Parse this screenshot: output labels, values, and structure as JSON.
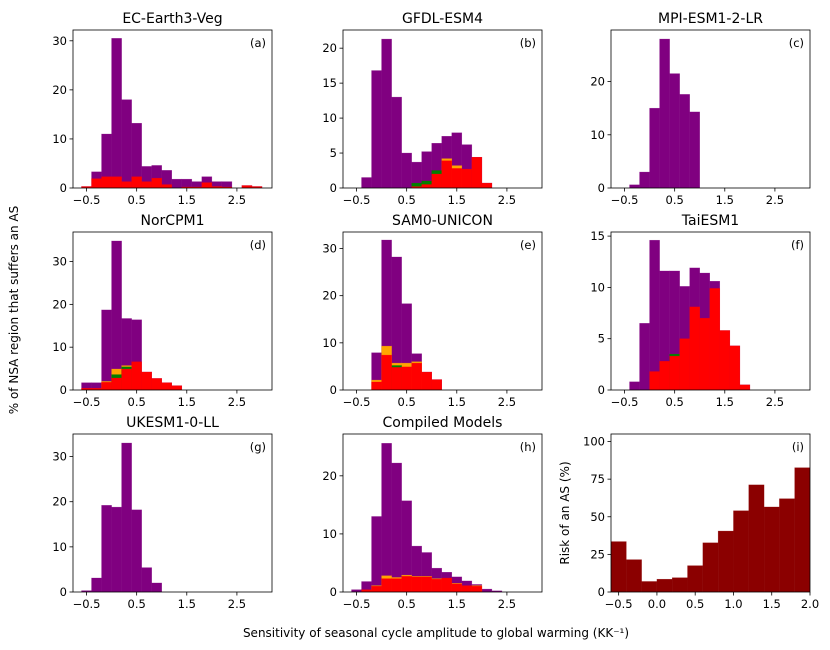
{
  "ylabel": "% of NSA region that suffers an AS",
  "xlabel": "Sensitivity of seasonal cycle amplitude to global warming (KK⁻¹)",
  "colors": {
    "total": "#800080",
    "orange": "#ffa500",
    "green": "#008000",
    "red": "#ff0000",
    "risk": "#8b0000"
  },
  "chart_data": [
    {
      "type": "bar",
      "title": "EC-Earth3-Veg",
      "label": "(a)",
      "bin_start": -0.6,
      "bin_width": 0.2,
      "xlim": [
        -0.77,
        3.2
      ],
      "ylim": [
        0,
        32.2
      ],
      "xticks": [
        -0.5,
        0.5,
        1.5,
        2.5
      ],
      "yticks": [
        0,
        10,
        20,
        30
      ],
      "series": [
        {
          "color": "total",
          "values": [
            0.3,
            3.3,
            11,
            30.5,
            18,
            13.2,
            4.4,
            4.6,
            3.6,
            1.8,
            1.8,
            1.3,
            2.3,
            1.3,
            1.3,
            0,
            0.5,
            0.3
          ]
        },
        {
          "color": "red",
          "values": [
            0.3,
            1.9,
            2.3,
            2.3,
            1.3,
            2.3,
            1.3,
            2.0,
            0.7,
            0,
            0.2,
            0.2,
            1.1,
            0.3,
            0.2,
            0,
            0.5,
            0.3
          ]
        }
      ]
    },
    {
      "type": "bar",
      "title": "GFDL-ESM4",
      "label": "(b)",
      "bin_start": -0.6,
      "bin_width": 0.2,
      "xlim": [
        -0.77,
        3.2
      ],
      "ylim": [
        0,
        22.6
      ],
      "xticks": [
        -0.5,
        0.5,
        1.5,
        2.5
      ],
      "yticks": [
        0,
        5,
        10,
        15,
        20
      ],
      "series": [
        {
          "color": "total",
          "values": [
            0,
            1.5,
            16.8,
            21.3,
            13,
            5,
            3.7,
            5.2,
            6.4,
            7.4,
            7.9,
            6.2,
            4.4,
            0.7,
            0,
            0,
            0,
            0
          ]
        },
        {
          "color": "orange",
          "values": [
            0,
            0,
            0,
            0,
            0,
            0,
            0,
            0,
            0,
            4.2,
            3.2,
            0,
            0,
            0,
            0,
            0,
            0,
            0
          ]
        },
        {
          "color": "green",
          "values": [
            0,
            0,
            0,
            0,
            0,
            0,
            0.7,
            1.0,
            2.5,
            0,
            0,
            0,
            0,
            0,
            0,
            0,
            0,
            0
          ]
        },
        {
          "color": "red",
          "values": [
            0,
            0,
            0,
            0,
            0,
            0,
            0.2,
            0.5,
            2.0,
            3.9,
            2.8,
            2.7,
            4.4,
            0.7,
            0,
            0,
            0,
            0
          ]
        }
      ]
    },
    {
      "type": "bar",
      "title": "MPI-ESM1-2-LR",
      "label": "(c)",
      "bin_start": -0.6,
      "bin_width": 0.2,
      "xlim": [
        -0.77,
        3.2
      ],
      "ylim": [
        0,
        29.7
      ],
      "xticks": [
        -0.5,
        0.5,
        1.5,
        2.5
      ],
      "yticks": [
        0,
        10,
        20
      ],
      "series": [
        {
          "color": "total",
          "values": [
            0,
            0.6,
            3,
            15,
            28,
            21.5,
            17.6,
            14.3,
            0,
            0,
            0,
            0,
            0,
            0,
            0,
            0,
            0,
            0
          ]
        }
      ]
    },
    {
      "type": "bar",
      "title": "NorCPM1",
      "label": "(d)",
      "bin_start": -0.6,
      "bin_width": 0.2,
      "xlim": [
        -0.77,
        3.2
      ],
      "ylim": [
        0,
        36.9
      ],
      "xticks": [
        -0.5,
        0.5,
        1.5,
        2.5
      ],
      "yticks": [
        0,
        10,
        20,
        30
      ],
      "series": [
        {
          "color": "total",
          "values": [
            1.7,
            1.7,
            18.7,
            34.8,
            16.7,
            16.4,
            4.2,
            2.7,
            1.7,
            1.0,
            0,
            0,
            0,
            0,
            0,
            0,
            0,
            0
          ]
        },
        {
          "color": "orange",
          "values": [
            0,
            0,
            2.0,
            4.9,
            5.7,
            0,
            0,
            0,
            0,
            0,
            0,
            0,
            0,
            0,
            0,
            0,
            0,
            0
          ]
        },
        {
          "color": "green",
          "values": [
            0,
            0,
            0,
            3.6,
            5.4,
            0,
            0,
            0,
            0,
            0,
            0,
            0,
            0,
            0,
            0,
            0,
            0,
            0
          ]
        },
        {
          "color": "red",
          "values": [
            0.4,
            0.4,
            1.8,
            2.8,
            4.9,
            6.6,
            4.2,
            2.7,
            1.7,
            1.0,
            0,
            0,
            0,
            0,
            0,
            0,
            0,
            0
          ]
        }
      ]
    },
    {
      "type": "bar",
      "title": "SAM0-UNICON",
      "label": "(e)",
      "bin_start": -0.6,
      "bin_width": 0.2,
      "xlim": [
        -0.77,
        3.2
      ],
      "ylim": [
        0,
        33.5
      ],
      "xticks": [
        -0.5,
        0.5,
        1.5,
        2.5
      ],
      "yticks": [
        0,
        10,
        20,
        30
      ],
      "series": [
        {
          "color": "total",
          "values": [
            0,
            0,
            7.9,
            31.8,
            28.2,
            18.3,
            7.7,
            3.8,
            2.2,
            0,
            0,
            0,
            0,
            0,
            0,
            0,
            0,
            0
          ]
        },
        {
          "color": "orange",
          "values": [
            0,
            0,
            2.1,
            9.3,
            5.7,
            5.7,
            6.0,
            0,
            0,
            0,
            0,
            0,
            0,
            0,
            0,
            0,
            0,
            0
          ]
        },
        {
          "color": "green",
          "values": [
            0,
            0,
            0,
            0,
            5.2,
            0,
            0,
            0,
            0,
            0,
            0,
            0,
            0,
            0,
            0,
            0,
            0,
            0
          ]
        },
        {
          "color": "red",
          "values": [
            0,
            0,
            1.7,
            7.4,
            4.8,
            4.9,
            5.7,
            3.8,
            2.2,
            0,
            0,
            0,
            0,
            0,
            0,
            0,
            0,
            0
          ]
        }
      ]
    },
    {
      "type": "bar",
      "title": "TaiESM1",
      "label": "(f)",
      "bin_start": -0.6,
      "bin_width": 0.2,
      "xlim": [
        -0.77,
        3.2
      ],
      "ylim": [
        0,
        15.4
      ],
      "xticks": [
        -0.5,
        0.5,
        1.5,
        2.5
      ],
      "yticks": [
        0,
        5,
        10,
        15
      ],
      "series": [
        {
          "color": "total",
          "values": [
            0,
            0.8,
            6.5,
            14.6,
            11.6,
            11.6,
            10.1,
            11.9,
            11.4,
            10.6,
            5.8,
            4.3,
            0.5,
            0,
            0,
            0,
            0,
            0
          ]
        },
        {
          "color": "green",
          "values": [
            0,
            0,
            0,
            0,
            0,
            3.5,
            0,
            0,
            0,
            0,
            0,
            0,
            0,
            0,
            0,
            0,
            0,
            0
          ]
        },
        {
          "color": "red",
          "values": [
            0,
            0,
            0,
            1.8,
            2.8,
            3.3,
            5.0,
            8.1,
            7.0,
            9.9,
            5.8,
            4.3,
            0.5,
            0,
            0,
            0,
            0,
            0
          ]
        }
      ]
    },
    {
      "type": "bar",
      "title": "UKESM1-0-LL",
      "label": "(g)",
      "bin_start": -0.6,
      "bin_width": 0.2,
      "xlim": [
        -0.77,
        3.2
      ],
      "ylim": [
        0,
        35
      ],
      "xticks": [
        -0.5,
        0.5,
        1.5,
        2.5
      ],
      "yticks": [
        0,
        10,
        20,
        30
      ],
      "series": [
        {
          "color": "total",
          "values": [
            0.3,
            3.1,
            19.2,
            18.8,
            33,
            18.2,
            5.4,
            2.0,
            0,
            0,
            0,
            0,
            0,
            0,
            0,
            0,
            0,
            0
          ]
        }
      ]
    },
    {
      "type": "bar",
      "title": "Compiled Models",
      "label": "(h)",
      "bin_start": -0.6,
      "bin_width": 0.2,
      "xlim": [
        -0.77,
        3.2
      ],
      "ylim": [
        0,
        27.2
      ],
      "xticks": [
        -0.5,
        0.5,
        1.5,
        2.5
      ],
      "yticks": [
        0,
        10,
        20
      ],
      "series": [
        {
          "color": "total",
          "values": [
            0.4,
            1.8,
            13,
            25.6,
            22.2,
            15.7,
            7.9,
            6.8,
            4.1,
            3.4,
            2.6,
            1.9,
            1.3,
            0.5,
            0.2,
            0,
            0,
            0
          ]
        },
        {
          "color": "orange",
          "values": [
            0,
            0,
            1.1,
            2.8,
            2.5,
            2.9,
            2.7,
            2.7,
            2.3,
            0,
            1.5,
            0,
            1.1,
            0,
            0,
            0,
            0,
            0
          ]
        },
        {
          "color": "red",
          "values": [
            0,
            0.4,
            1.0,
            2.3,
            2.3,
            2.7,
            2.6,
            2.6,
            2.2,
            2.4,
            1.4,
            1.1,
            1.0,
            0,
            0,
            0,
            0,
            0
          ]
        }
      ]
    },
    {
      "type": "bar",
      "title": "",
      "label": "(i)",
      "ylabel": "Risk of an AS (%)",
      "bin_start": -0.6,
      "bin_width": 0.2,
      "xlim": [
        -0.6,
        2.0
      ],
      "ylim": [
        0,
        105
      ],
      "xticks": [
        -0.5,
        0.0,
        0.5,
        1.0,
        1.5,
        2.0
      ],
      "yticks": [
        0,
        25,
        50,
        75,
        100
      ],
      "series": [
        {
          "color": "risk",
          "values": [
            33.5,
            21.5,
            7,
            8.5,
            9.5,
            17.5,
            32.7,
            40.5,
            54,
            71.2,
            56.5,
            62,
            82.6
          ]
        }
      ]
    }
  ]
}
